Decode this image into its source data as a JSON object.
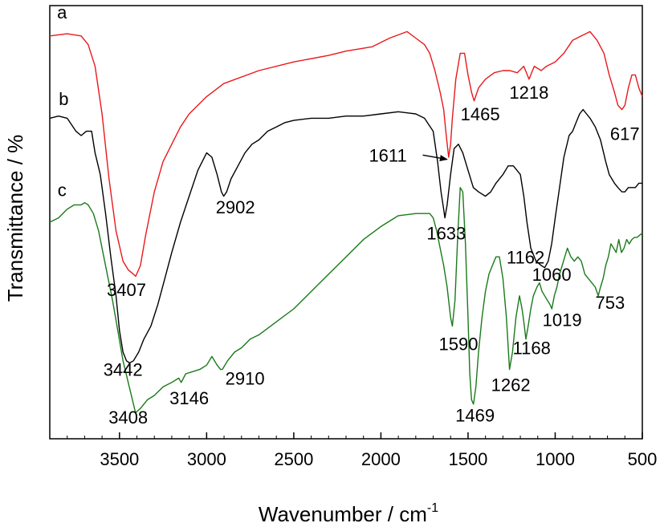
{
  "chart_data": {
    "type": "line",
    "xlabel": "Wavenumber / cm",
    "xlabel_sup": "-1",
    "ylabel": "Transmittance / %",
    "xlim": [
      3900,
      500
    ],
    "x_reversed": true,
    "ylim": [
      0,
      100
    ],
    "x_ticks": [
      3500,
      3000,
      2500,
      2000,
      1500,
      1000,
      500
    ],
    "grid": false,
    "series": [
      {
        "name": "a",
        "color": "#e8191b",
        "points": [
          [
            3900,
            93
          ],
          [
            3800,
            93.5
          ],
          [
            3720,
            93
          ],
          [
            3680,
            91
          ],
          [
            3640,
            86
          ],
          [
            3600,
            75
          ],
          [
            3560,
            60
          ],
          [
            3520,
            48
          ],
          [
            3480,
            41
          ],
          [
            3450,
            39
          ],
          [
            3420,
            38
          ],
          [
            3407,
            37.5
          ],
          [
            3380,
            40
          ],
          [
            3350,
            47
          ],
          [
            3300,
            57
          ],
          [
            3250,
            64
          ],
          [
            3200,
            68
          ],
          [
            3150,
            72
          ],
          [
            3100,
            75
          ],
          [
            3000,
            79
          ],
          [
            2902,
            82
          ],
          [
            2700,
            85
          ],
          [
            2500,
            87
          ],
          [
            2300,
            88.5
          ],
          [
            2200,
            89.5
          ],
          [
            2050,
            90.5
          ],
          [
            1950,
            92.5
          ],
          [
            1850,
            94
          ],
          [
            1800,
            92.5
          ],
          [
            1750,
            91
          ],
          [
            1720,
            89
          ],
          [
            1690,
            85
          ],
          [
            1660,
            80
          ],
          [
            1640,
            76
          ],
          [
            1625,
            70
          ],
          [
            1611,
            65
          ],
          [
            1600,
            68
          ],
          [
            1590,
            74
          ],
          [
            1570,
            83
          ],
          [
            1545,
            89
          ],
          [
            1520,
            89
          ],
          [
            1500,
            84
          ],
          [
            1480,
            80
          ],
          [
            1465,
            78
          ],
          [
            1440,
            81
          ],
          [
            1400,
            83
          ],
          [
            1350,
            84.5
          ],
          [
            1300,
            85
          ],
          [
            1260,
            85
          ],
          [
            1218,
            84.5
          ],
          [
            1180,
            86
          ],
          [
            1150,
            83
          ],
          [
            1120,
            86
          ],
          [
            1080,
            85
          ],
          [
            1050,
            86
          ],
          [
            1000,
            87
          ],
          [
            950,
            89
          ],
          [
            900,
            92
          ],
          [
            850,
            93
          ],
          [
            800,
            94
          ],
          [
            760,
            92
          ],
          [
            720,
            89
          ],
          [
            690,
            84
          ],
          [
            660,
            80
          ],
          [
            640,
            77
          ],
          [
            617,
            76
          ],
          [
            600,
            77
          ],
          [
            580,
            81
          ],
          [
            560,
            84
          ],
          [
            540,
            84
          ],
          [
            520,
            81
          ],
          [
            500,
            79
          ]
        ]
      },
      {
        "name": "b",
        "color": "#000000",
        "points": [
          [
            3900,
            74
          ],
          [
            3850,
            74.5
          ],
          [
            3800,
            74
          ],
          [
            3750,
            71
          ],
          [
            3720,
            70
          ],
          [
            3690,
            71
          ],
          [
            3660,
            71
          ],
          [
            3640,
            66
          ],
          [
            3610,
            61
          ],
          [
            3580,
            52
          ],
          [
            3550,
            42
          ],
          [
            3520,
            33
          ],
          [
            3500,
            25
          ],
          [
            3480,
            20
          ],
          [
            3460,
            18
          ],
          [
            3442,
            17.5
          ],
          [
            3420,
            18
          ],
          [
            3390,
            20
          ],
          [
            3360,
            23
          ],
          [
            3320,
            26
          ],
          [
            3280,
            31
          ],
          [
            3240,
            37
          ],
          [
            3200,
            43
          ],
          [
            3150,
            50
          ],
          [
            3100,
            56
          ],
          [
            3050,
            62
          ],
          [
            3000,
            66
          ],
          [
            2970,
            65
          ],
          [
            2940,
            61
          ],
          [
            2915,
            57
          ],
          [
            2902,
            56
          ],
          [
            2885,
            57
          ],
          [
            2860,
            60
          ],
          [
            2820,
            63
          ],
          [
            2780,
            66
          ],
          [
            2740,
            68
          ],
          [
            2700,
            69
          ],
          [
            2650,
            71
          ],
          [
            2600,
            72
          ],
          [
            2550,
            73
          ],
          [
            2500,
            73.5
          ],
          [
            2400,
            74
          ],
          [
            2300,
            74
          ],
          [
            2200,
            74.5
          ],
          [
            2100,
            74.5
          ],
          [
            2000,
            75
          ],
          [
            1900,
            75.5
          ],
          [
            1800,
            75
          ],
          [
            1750,
            74
          ],
          [
            1700,
            71
          ],
          [
            1675,
            64
          ],
          [
            1655,
            57
          ],
          [
            1640,
            53
          ],
          [
            1633,
            51
          ],
          [
            1620,
            54
          ],
          [
            1600,
            61
          ],
          [
            1580,
            67
          ],
          [
            1555,
            68
          ],
          [
            1530,
            66
          ],
          [
            1500,
            62
          ],
          [
            1470,
            58
          ],
          [
            1440,
            57
          ],
          [
            1400,
            56
          ],
          [
            1370,
            57
          ],
          [
            1340,
            59
          ],
          [
            1300,
            61
          ],
          [
            1270,
            63
          ],
          [
            1240,
            63
          ],
          [
            1200,
            61
          ],
          [
            1180,
            56
          ],
          [
            1162,
            50
          ],
          [
            1140,
            44
          ],
          [
            1110,
            41
          ],
          [
            1080,
            40
          ],
          [
            1060,
            39.5
          ],
          [
            1040,
            41
          ],
          [
            1020,
            45
          ],
          [
            1000,
            51
          ],
          [
            975,
            58
          ],
          [
            950,
            65
          ],
          [
            920,
            70
          ],
          [
            900,
            71
          ],
          [
            880,
            73
          ],
          [
            860,
            75
          ],
          [
            840,
            76
          ],
          [
            820,
            75
          ],
          [
            800,
            74
          ],
          [
            770,
            72
          ],
          [
            740,
            69
          ],
          [
            710,
            64
          ],
          [
            690,
            61
          ],
          [
            660,
            59
          ],
          [
            640,
            58
          ],
          [
            617,
            57
          ],
          [
            600,
            57
          ],
          [
            580,
            58
          ],
          [
            560,
            58
          ],
          [
            540,
            58
          ],
          [
            520,
            59
          ],
          [
            500,
            59
          ]
        ]
      },
      {
        "name": "c",
        "color": "#1a7a1a",
        "points": [
          [
            3900,
            50
          ],
          [
            3850,
            51
          ],
          [
            3800,
            53
          ],
          [
            3760,
            54
          ],
          [
            3720,
            54
          ],
          [
            3700,
            54.5
          ],
          [
            3680,
            54
          ],
          [
            3650,
            52
          ],
          [
            3620,
            48
          ],
          [
            3600,
            44
          ],
          [
            3570,
            38
          ],
          [
            3540,
            32
          ],
          [
            3510,
            25
          ],
          [
            3480,
            18
          ],
          [
            3450,
            13
          ],
          [
            3420,
            8
          ],
          [
            3408,
            6
          ],
          [
            3380,
            7
          ],
          [
            3340,
            9
          ],
          [
            3300,
            10
          ],
          [
            3250,
            12
          ],
          [
            3200,
            13
          ],
          [
            3160,
            14
          ],
          [
            3146,
            13
          ],
          [
            3120,
            15
          ],
          [
            3080,
            15.5
          ],
          [
            3040,
            16
          ],
          [
            3000,
            17
          ],
          [
            2970,
            19
          ],
          [
            2940,
            17
          ],
          [
            2920,
            16
          ],
          [
            2910,
            16
          ],
          [
            2880,
            18
          ],
          [
            2840,
            20
          ],
          [
            2800,
            21
          ],
          [
            2750,
            23
          ],
          [
            2700,
            24
          ],
          [
            2600,
            27
          ],
          [
            2500,
            30
          ],
          [
            2400,
            34
          ],
          [
            2300,
            38
          ],
          [
            2200,
            42
          ],
          [
            2100,
            46
          ],
          [
            2000,
            49
          ],
          [
            1900,
            51.5
          ],
          [
            1800,
            52
          ],
          [
            1720,
            52
          ],
          [
            1700,
            51
          ],
          [
            1680,
            48
          ],
          [
            1660,
            44
          ],
          [
            1640,
            40
          ],
          [
            1620,
            35
          ],
          [
            1600,
            28
          ],
          [
            1590,
            26
          ],
          [
            1575,
            32
          ],
          [
            1560,
            46
          ],
          [
            1545,
            58
          ],
          [
            1530,
            57
          ],
          [
            1515,
            45
          ],
          [
            1500,
            28
          ],
          [
            1490,
            15
          ],
          [
            1480,
            9
          ],
          [
            1469,
            8
          ],
          [
            1455,
            12
          ],
          [
            1440,
            20
          ],
          [
            1420,
            28
          ],
          [
            1400,
            34
          ],
          [
            1380,
            38
          ],
          [
            1360,
            40
          ],
          [
            1340,
            42
          ],
          [
            1320,
            42
          ],
          [
            1300,
            37
          ],
          [
            1280,
            28
          ],
          [
            1262,
            16
          ],
          [
            1245,
            20
          ],
          [
            1225,
            28
          ],
          [
            1205,
            33
          ],
          [
            1190,
            30
          ],
          [
            1180,
            27
          ],
          [
            1168,
            23
          ],
          [
            1155,
            26
          ],
          [
            1140,
            30
          ],
          [
            1125,
            33
          ],
          [
            1105,
            35
          ],
          [
            1090,
            36
          ],
          [
            1075,
            34
          ],
          [
            1060,
            33
          ],
          [
            1045,
            32
          ],
          [
            1030,
            31
          ],
          [
            1019,
            30
          ],
          [
            1005,
            33
          ],
          [
            990,
            35
          ],
          [
            975,
            38
          ],
          [
            960,
            40
          ],
          [
            945,
            42
          ],
          [
            930,
            44
          ],
          [
            910,
            42
          ],
          [
            890,
            41
          ],
          [
            870,
            42
          ],
          [
            850,
            41
          ],
          [
            830,
            38
          ],
          [
            810,
            37
          ],
          [
            790,
            36
          ],
          [
            770,
            35
          ],
          [
            753,
            33
          ],
          [
            740,
            35
          ],
          [
            725,
            37
          ],
          [
            710,
            40
          ],
          [
            695,
            42
          ],
          [
            680,
            45
          ],
          [
            665,
            44
          ],
          [
            650,
            43
          ],
          [
            635,
            46
          ],
          [
            620,
            43
          ],
          [
            605,
            44
          ],
          [
            590,
            46
          ],
          [
            575,
            45
          ],
          [
            560,
            46
          ],
          [
            545,
            46.5
          ],
          [
            530,
            46.5
          ],
          [
            515,
            47
          ],
          [
            500,
            47.5
          ]
        ]
      }
    ],
    "annotations": [
      {
        "text": "a",
        "x": 3830,
        "y": 97
      },
      {
        "text": "b",
        "x": 3820,
        "y": 77
      },
      {
        "text": "c",
        "x": 3830,
        "y": 56
      },
      {
        "text": "3407",
        "x": 3460,
        "y": 33
      },
      {
        "text": "3442",
        "x": 3480,
        "y": 14.5
      },
      {
        "text": "3408",
        "x": 3450,
        "y": 3.5
      },
      {
        "text": "2902",
        "x": 2835,
        "y": 52
      },
      {
        "text": "3146",
        "x": 3100,
        "y": 8
      },
      {
        "text": "2910",
        "x": 2780,
        "y": 12.5
      },
      {
        "text": "1611",
        "x": 1960,
        "y": 64
      },
      {
        "text": "1465",
        "x": 1430,
        "y": 73.5
      },
      {
        "text": "1218",
        "x": 1150,
        "y": 78.5
      },
      {
        "text": "617",
        "x": 600,
        "y": 69
      },
      {
        "text": "1633",
        "x": 1625,
        "y": 46
      },
      {
        "text": "1162",
        "x": 1170,
        "y": 40.5
      },
      {
        "text": "1060",
        "x": 1020,
        "y": 36.5
      },
      {
        "text": "1019",
        "x": 960,
        "y": 26
      },
      {
        "text": "753",
        "x": 685,
        "y": 30
      },
      {
        "text": "1590",
        "x": 1555,
        "y": 20.5
      },
      {
        "text": "1168",
        "x": 1135,
        "y": 19.5
      },
      {
        "text": "1262",
        "x": 1255,
        "y": 11
      },
      {
        "text": "1469",
        "x": 1460,
        "y": 4
      }
    ],
    "arrow": {
      "from": [
        1760,
        65.5
      ],
      "to": [
        1620,
        64.5
      ]
    }
  }
}
